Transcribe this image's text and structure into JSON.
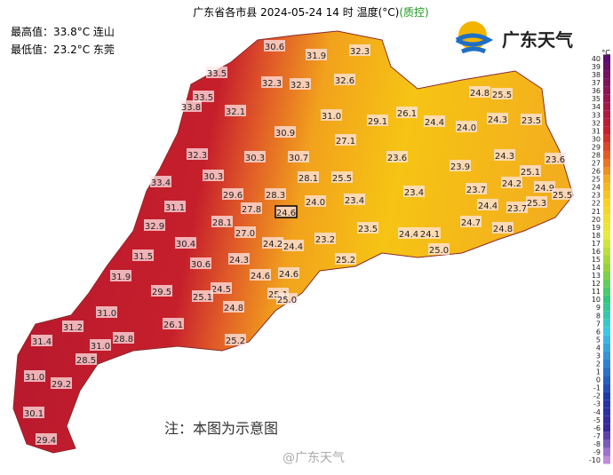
{
  "header": {
    "title": "广东省各市县 2024-05-24 14 时 温度(°C)",
    "qc": "(质控)",
    "max": "最高值：33.8°C 连山",
    "min": "最低值：23.2°C 东莞"
  },
  "logo": "广东天气",
  "note": "注：本图为示意图",
  "watermark": "@广东天气",
  "legend": {
    "unit": "°C",
    "ticks": [
      40,
      39,
      38,
      37,
      36,
      35,
      34,
      33,
      32,
      31,
      30,
      29,
      28,
      27,
      26,
      25,
      24,
      23,
      22,
      21,
      20,
      19,
      18,
      17,
      16,
      15,
      14,
      13,
      12,
      11,
      10,
      9,
      8,
      7,
      6,
      5,
      4,
      3,
      2,
      1,
      0,
      -1,
      -2,
      -3,
      -4,
      -5,
      -6,
      -7,
      -8,
      -9,
      -10
    ]
  },
  "stations": [
    "30.6",
    "31.9",
    "32.3",
    "33.5",
    "32.3",
    "32.3",
    "32.6",
    "33.5",
    "33.8",
    "32.1",
    "31.0",
    "29.1",
    "26.1",
    "24.8",
    "25.5",
    "24.4",
    "24.0",
    "24.3",
    "23.5",
    "30.9",
    "27.1",
    "32.3",
    "30.3",
    "30.7",
    "23.6",
    "23.9",
    "24.3",
    "23.6",
    "25.1",
    "33.4",
    "30.3",
    "28.1",
    "25.5",
    "24.2",
    "24.9",
    "25.5",
    "29.6",
    "28.3",
    "27.8",
    "24.6",
    "24.0",
    "23.4",
    "23.4",
    "23.7",
    "24.4",
    "23.7",
    "25.3",
    "31.1",
    "28.1",
    "27.0",
    "23.5",
    "24.7",
    "24.8",
    "32.9",
    "24.2",
    "24.4",
    "23.2",
    "24.4",
    "24.1",
    "25.0",
    "30.4",
    "31.5",
    "24.3",
    "25.2",
    "30.6",
    "24.6",
    "24.6",
    "31.9",
    "24.5",
    "25.1",
    "25.0",
    "29.5",
    "25.1",
    "31.0",
    "24.8",
    "26.1",
    "31.2",
    "28.8",
    "31.4",
    "31.0",
    "25.2",
    "28.5",
    "31.0",
    "29.2",
    "30.1",
    "29.4"
  ]
}
